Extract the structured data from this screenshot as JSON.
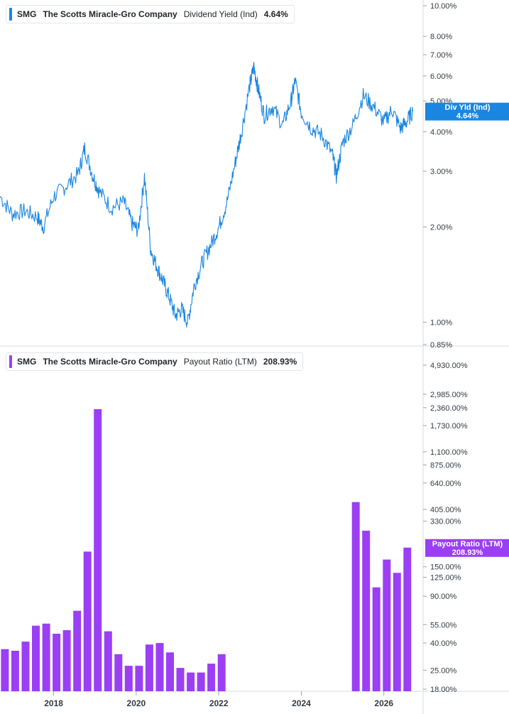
{
  "top_legend": {
    "ticker": "SMG",
    "company": "The Scotts Miracle-Gro Company",
    "metric": "Dividend Yield (Ind)",
    "value": "4.64%",
    "color": "#1a86e0"
  },
  "bottom_legend": {
    "ticker": "SMG",
    "company": "The Scotts Miracle-Gro Company",
    "metric": "Payout Ratio (LTM)",
    "value": "208.93%",
    "color": "#9b3ff5"
  },
  "chart_data": [
    {
      "type": "line",
      "scale": "log",
      "series": [
        {
          "name": "Dividend Yield (Ind)",
          "color": "#1a86e0",
          "x": [
            2016.7,
            2017.0,
            2017.3,
            2017.6,
            2017.75,
            2018.0,
            2018.3,
            2018.6,
            2018.75,
            2018.95,
            2019.1,
            2019.4,
            2019.7,
            2019.9,
            2020.05,
            2020.2,
            2020.35,
            2020.5,
            2020.65,
            2020.8,
            2020.95,
            2021.1,
            2021.25,
            2021.4,
            2021.6,
            2021.8,
            2022.0,
            2022.2,
            2022.4,
            2022.55,
            2022.75,
            2022.85,
            2022.95,
            2023.1,
            2023.3,
            2023.55,
            2023.75,
            2023.85,
            2024.0,
            2024.25,
            2024.5,
            2024.75,
            2024.85,
            2025.0,
            2025.25,
            2025.5,
            2025.75,
            2026.0,
            2026.2,
            2026.4,
            2026.55,
            2026.7
          ],
          "values": [
            2.5,
            2.2,
            2.25,
            2.15,
            2.0,
            2.5,
            2.7,
            2.95,
            3.55,
            2.9,
            2.6,
            2.3,
            2.4,
            2.05,
            1.95,
            2.9,
            1.7,
            1.5,
            1.35,
            1.2,
            1.05,
            1.1,
            1.0,
            1.3,
            1.55,
            1.75,
            2.0,
            2.4,
            3.2,
            4.0,
            5.6,
            6.4,
            5.5,
            4.5,
            4.8,
            4.2,
            5.0,
            5.8,
            4.6,
            4.1,
            3.9,
            3.4,
            2.9,
            3.7,
            4.2,
            5.2,
            4.8,
            4.3,
            4.7,
            4.1,
            4.3,
            4.64
          ]
        }
      ],
      "ylim": [
        0.85,
        10.0
      ],
      "y_ticks": [
        "10.00%",
        "8.00%",
        "7.00%",
        "6.00%",
        "5.00%",
        "4.00%",
        "3.00%",
        "2.00%",
        "1.00%",
        "0.85%"
      ],
      "y_tick_values": [
        10,
        8,
        7,
        6,
        5,
        4,
        3,
        2,
        1,
        0.85
      ],
      "badge": {
        "label": "Div Yld (Ind)",
        "value": "4.64%"
      }
    },
    {
      "type": "bar",
      "scale": "log",
      "series": [
        {
          "name": "Payout Ratio (LTM)",
          "color": "#9b3ff5",
          "x": [
            2016.75,
            2017.0,
            2017.25,
            2017.5,
            2017.75,
            2018.0,
            2018.25,
            2018.5,
            2018.75,
            2019.0,
            2019.25,
            2019.5,
            2019.75,
            2020.0,
            2020.25,
            2020.5,
            2020.75,
            2021.0,
            2021.25,
            2021.5,
            2021.75,
            2022.0,
            2025.25,
            2025.5,
            2025.75,
            2026.0,
            2026.25,
            2026.5
          ],
          "values": [
            36,
            35,
            41,
            54,
            56,
            47,
            50,
            70,
            195,
            2300,
            49,
            33,
            27,
            27,
            39,
            40,
            34,
            26,
            24,
            24,
            28,
            33,
            460,
            280,
            105,
            170,
            135,
            208.93
          ]
        }
      ],
      "ylim": [
        18,
        4930
      ],
      "y_ticks": [
        "4,930.00%",
        "2,985.00%",
        "2,360.00%",
        "1,730.00%",
        "1,100.00%",
        "875.00%",
        "640.00%",
        "405.00%",
        "330.00%",
        "150.00%",
        "125.00%",
        "90.00%",
        "55.00%",
        "40.00%",
        "25.00%",
        "18.00%"
      ],
      "y_tick_values": [
        4930,
        2985,
        2360,
        1730,
        1100,
        875,
        640,
        405,
        330,
        150,
        125,
        90,
        55,
        40,
        25,
        18
      ],
      "badge": {
        "label": "Payout Ratio (LTM)",
        "value": "208.93%"
      }
    }
  ],
  "x_axis": {
    "labels": [
      "2018",
      "2020",
      "2022",
      "2024",
      "2026"
    ],
    "values": [
      2018,
      2020,
      2022,
      2024,
      2026
    ],
    "range": [
      2016.7,
      2026.95
    ]
  }
}
